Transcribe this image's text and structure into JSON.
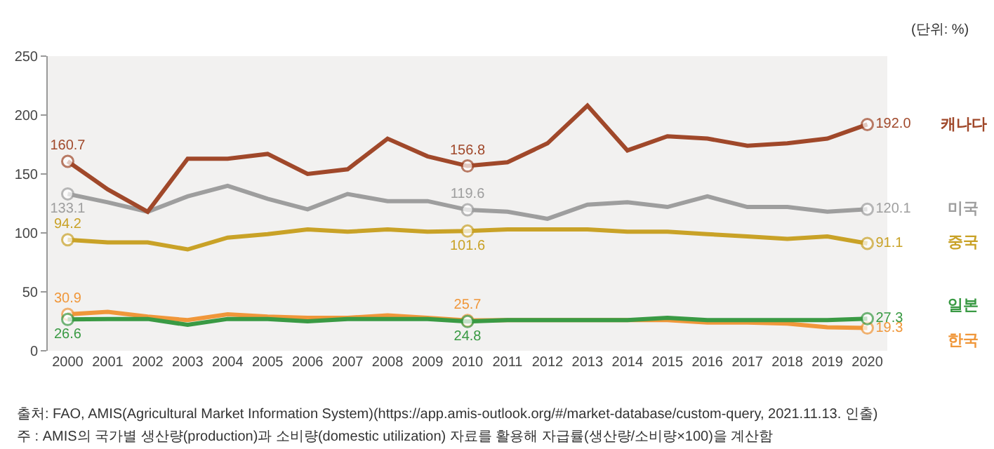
{
  "chart_data": {
    "type": "line",
    "categories": [
      "2000",
      "2001",
      "2002",
      "2003",
      "2004",
      "2005",
      "2006",
      "2007",
      "2008",
      "2009",
      "2010",
      "2011",
      "2012",
      "2013",
      "2014",
      "2015",
      "2016",
      "2017",
      "2018",
      "2019",
      "2020"
    ],
    "series": [
      {
        "name": "캐나다",
        "color": "#a0482a",
        "values": [
          160.7,
          137,
          118,
          163,
          163,
          167,
          150,
          154,
          180,
          165,
          156.8,
          160,
          176,
          208,
          170,
          182,
          180,
          174,
          176,
          180,
          192.0
        ],
        "value_labels": [
          "160.7",
          null,
          null,
          null,
          null,
          null,
          null,
          null,
          null,
          null,
          "156.8",
          null,
          null,
          null,
          null,
          null,
          null,
          null,
          null,
          null,
          "192.0"
        ]
      },
      {
        "name": "미국",
        "color": "#9e9e9e",
        "values": [
          133.1,
          126,
          118,
          131,
          140,
          129,
          120,
          133,
          127,
          127,
          119.6,
          118,
          112,
          124,
          126,
          122,
          131,
          122,
          122,
          118,
          120.1
        ],
        "value_labels": [
          "133.1",
          null,
          null,
          null,
          null,
          null,
          null,
          null,
          null,
          null,
          "119.6",
          null,
          null,
          null,
          null,
          null,
          null,
          null,
          null,
          null,
          "120.1"
        ]
      },
      {
        "name": "중국",
        "color": "#c9a227",
        "values": [
          94.2,
          92,
          92,
          86,
          96,
          99,
          103,
          101,
          103,
          101,
          101.6,
          103,
          103,
          103,
          101,
          101,
          99,
          97,
          95,
          97,
          91.1
        ],
        "value_labels": [
          "94.2",
          null,
          null,
          null,
          null,
          null,
          null,
          null,
          null,
          null,
          "101.6",
          null,
          null,
          null,
          null,
          null,
          null,
          null,
          null,
          null,
          "91.1"
        ]
      },
      {
        "name": "일본",
        "color": "#3a9a44",
        "values": [
          26.6,
          27,
          27,
          22,
          27,
          27,
          25,
          27,
          27,
          27,
          24.8,
          26,
          26,
          26,
          26,
          28,
          26,
          26,
          26,
          26,
          27.3
        ],
        "value_labels": [
          "26.6",
          null,
          null,
          null,
          null,
          null,
          null,
          null,
          null,
          null,
          "24.8",
          null,
          null,
          null,
          null,
          null,
          null,
          null,
          null,
          null,
          "27.3"
        ]
      },
      {
        "name": "한국",
        "color": "#f0973a",
        "values": [
          30.9,
          33,
          29,
          26,
          31,
          29,
          28,
          28,
          30,
          28,
          25.7,
          26,
          26,
          26,
          26,
          26,
          24,
          24,
          23,
          20,
          19.3
        ],
        "value_labels": [
          "30.9",
          null,
          null,
          null,
          null,
          null,
          null,
          null,
          null,
          null,
          "25.7",
          null,
          null,
          null,
          null,
          null,
          null,
          null,
          null,
          null,
          "19.3"
        ]
      }
    ],
    "ylim": [
      0,
      250
    ],
    "yticks": [
      0,
      50,
      100,
      150,
      200,
      250
    ],
    "grid": false,
    "legend": false,
    "line_style": "solid",
    "annotations": [
      "(단위: %)",
      "출처: FAO, AMIS(Agricultural Market Information System)(https://app.amis-outlook.org/#/market-database/custom-query, 2021.11.13. 인출)",
      "주 : AMIS의 국가별 생산량(production)과 소비량(domestic utilization) 자료를 활용해 자급률(생산량/소비량×100)을 계산함"
    ]
  }
}
